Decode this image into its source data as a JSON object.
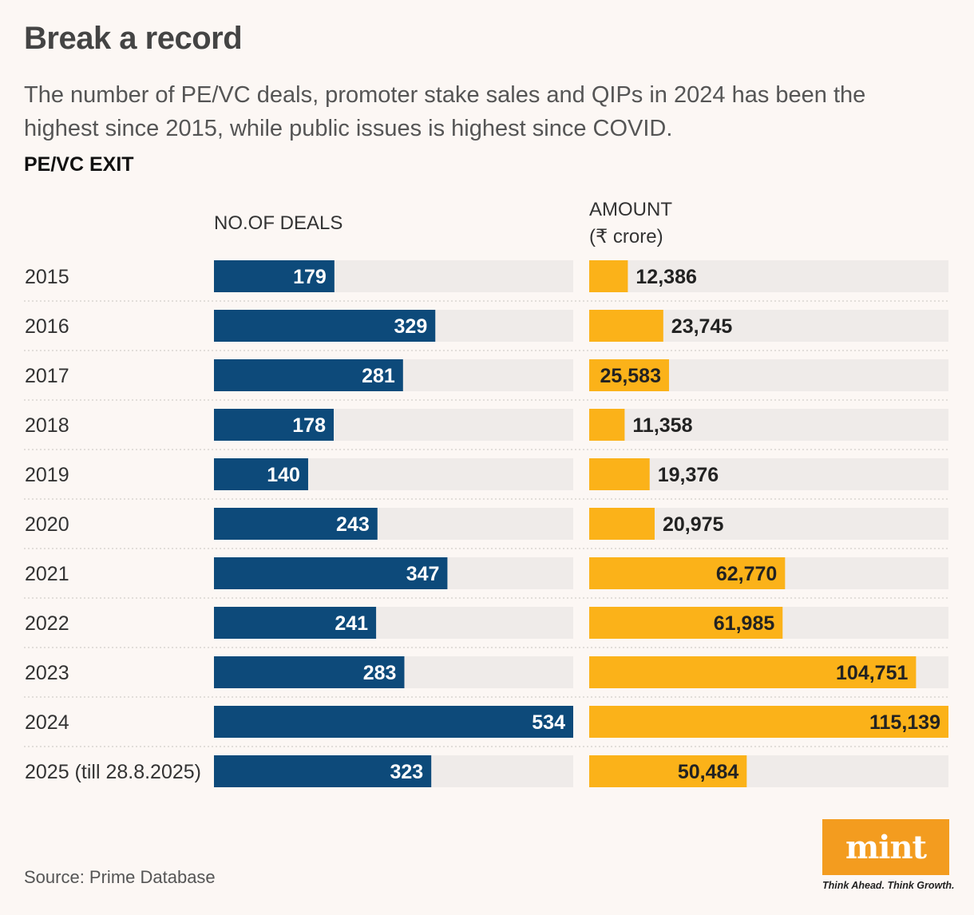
{
  "header": {
    "title": "Break a record",
    "subtitle": "The number of PE/VC deals, promoter stake sales and QIPs in 2024 has been the highest since 2015, while public issues is highest since COVID.",
    "section": "PE/VC EXIT"
  },
  "columns": {
    "deals_label": "NO.OF DEALS",
    "amount_label_line1": "AMOUNT",
    "amount_label_line2": "(₹ crore)"
  },
  "colors": {
    "deals_bar": "#0d4a7a",
    "amount_bar": "#fbb219",
    "track": "#efebe9"
  },
  "chart_data": {
    "type": "bar",
    "categories": [
      "2015",
      "2016",
      "2017",
      "2018",
      "2019",
      "2020",
      "2021",
      "2022",
      "2023",
      "2024",
      "2025 (till 28.8.2025)"
    ],
    "series": [
      {
        "name": "NO.OF DEALS",
        "values": [
          179,
          329,
          281,
          178,
          140,
          243,
          347,
          241,
          283,
          534,
          323
        ]
      },
      {
        "name": "AMOUNT (₹ crore)",
        "values": [
          12386,
          23745,
          25583,
          11358,
          19376,
          20975,
          62770,
          61985,
          104751,
          115139,
          50484
        ]
      }
    ],
    "deals_max": 534,
    "amount_max": 115139
  },
  "footer": {
    "source": "Source: Prime Database",
    "logo": "mint",
    "tagline": "Think Ahead. Think Growth."
  }
}
